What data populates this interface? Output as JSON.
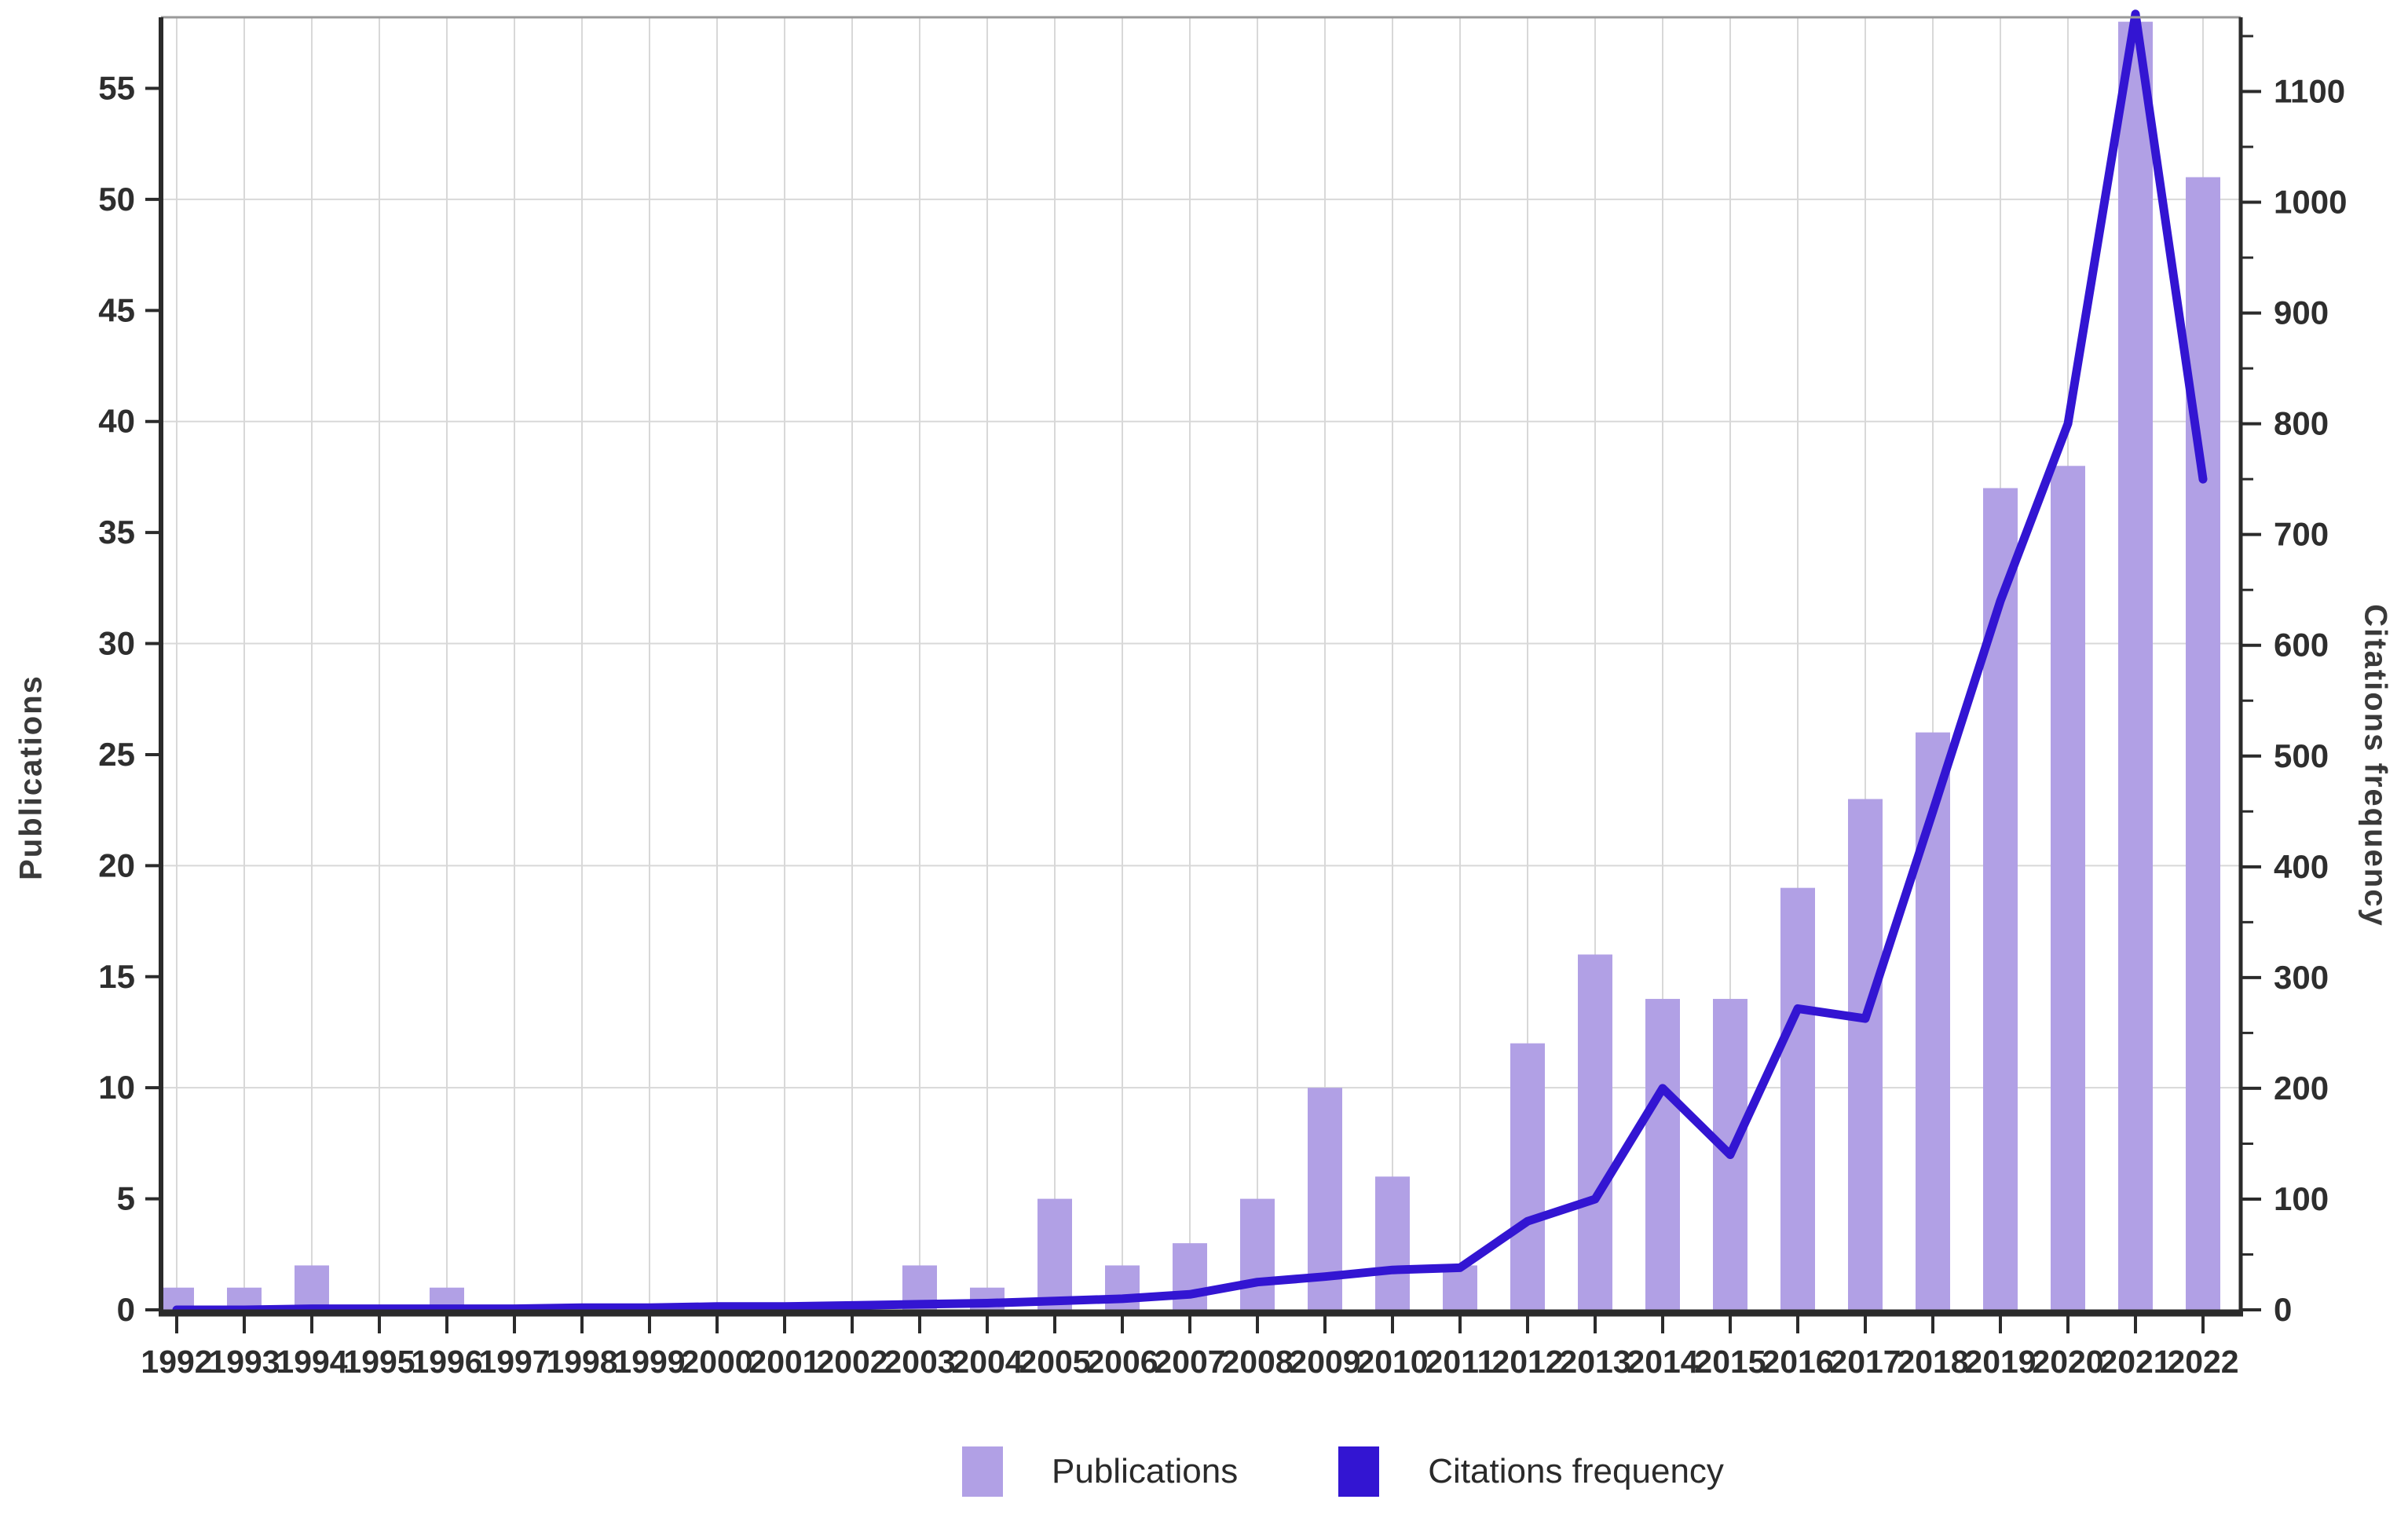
{
  "chart_data": {
    "type": "bar+line",
    "title": "",
    "categories": [
      "1992",
      "1993",
      "1994",
      "1995",
      "1996",
      "1997",
      "1998",
      "1999",
      "2000",
      "2001",
      "2002",
      "2003",
      "2004",
      "2005",
      "2006",
      "2007",
      "2008",
      "2009",
      "2010",
      "2011",
      "2012",
      "2013",
      "2014",
      "2015",
      "2016",
      "2017",
      "2018",
      "2019",
      "2020",
      "2021",
      "2022"
    ],
    "series": [
      {
        "name": "Publications",
        "type": "bar",
        "axis": "left",
        "color": "#b1a0e5",
        "values": [
          1,
          1,
          2,
          0,
          1,
          0,
          0,
          0,
          0,
          0,
          0,
          2,
          1,
          5,
          2,
          3,
          5,
          10,
          6,
          2,
          12,
          16,
          14,
          14,
          19,
          23,
          26,
          37,
          38,
          58,
          51
        ]
      },
      {
        "name": "Citations frequency",
        "type": "line",
        "axis": "right",
        "color": "#3315d2",
        "values": [
          0,
          0,
          1,
          1,
          1,
          1,
          2,
          2,
          3,
          3,
          4,
          5,
          6,
          8,
          10,
          14,
          25,
          30,
          36,
          38,
          80,
          100,
          200,
          140,
          272,
          263,
          450,
          640,
          800,
          1170,
          750
        ]
      }
    ],
    "xlabel": "",
    "ylabel_left": "Publications",
    "ylabel_right": "Citations frequency",
    "ylim_left": [
      0,
      58.2
    ],
    "ylim_right": [
      0,
      1167
    ],
    "yticks_left": [
      0,
      5,
      10,
      15,
      20,
      25,
      30,
      35,
      40,
      45,
      50,
      55
    ],
    "yticks_right": [
      0,
      100,
      200,
      300,
      400,
      500,
      600,
      700,
      800,
      900,
      1000,
      1100
    ],
    "yticks_right_minor_step": 50,
    "gridlines_horizontal_at": [
      10,
      20,
      30,
      40,
      50
    ],
    "grid": true,
    "legend_position": "bottom"
  },
  "axes": {
    "left_title": "Publications",
    "right_title": "Citations frequency"
  },
  "legend": {
    "publications_label": "Publications",
    "citations_label": "Citations frequency"
  },
  "colors": {
    "bar": "#b1a0e5",
    "line": "#3315d2",
    "grid": "#d8d8d8",
    "axis_dark": "#2b2b2b",
    "axis_top": "#9a9a9a",
    "tick_text": "#2e2e2e"
  }
}
